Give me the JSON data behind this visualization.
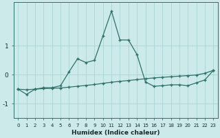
{
  "x": [
    0,
    1,
    2,
    3,
    4,
    5,
    6,
    7,
    8,
    9,
    10,
    11,
    12,
    13,
    14,
    15,
    16,
    17,
    18,
    19,
    20,
    21,
    22,
    23
  ],
  "line1": [
    -0.5,
    -0.68,
    -0.5,
    -0.45,
    -0.45,
    -0.38,
    0.1,
    0.55,
    0.42,
    0.5,
    1.35,
    2.2,
    1.2,
    1.2,
    0.7,
    -0.25,
    -0.4,
    -0.38,
    -0.35,
    -0.35,
    -0.38,
    -0.28,
    -0.18,
    0.15
  ],
  "line2": [
    -0.5,
    -0.52,
    -0.5,
    -0.48,
    -0.47,
    -0.46,
    -0.43,
    -0.4,
    -0.37,
    -0.34,
    -0.3,
    -0.26,
    -0.23,
    -0.2,
    -0.17,
    -0.14,
    -0.11,
    -0.09,
    -0.07,
    -0.05,
    -0.03,
    -0.01,
    0.05,
    0.15
  ],
  "bg_color": "#cceaea",
  "line_color": "#2d7068",
  "grid_color": "#aad4d4",
  "xlabel": "Humidex (Indice chaleur)",
  "xlim": [
    -0.5,
    23.5
  ],
  "ylim": [
    -1.5,
    2.5
  ],
  "yticks": [
    -1,
    0,
    1
  ],
  "xticks": [
    0,
    1,
    2,
    3,
    4,
    5,
    6,
    7,
    8,
    9,
    10,
    11,
    12,
    13,
    14,
    15,
    16,
    17,
    18,
    19,
    20,
    21,
    22,
    23
  ]
}
